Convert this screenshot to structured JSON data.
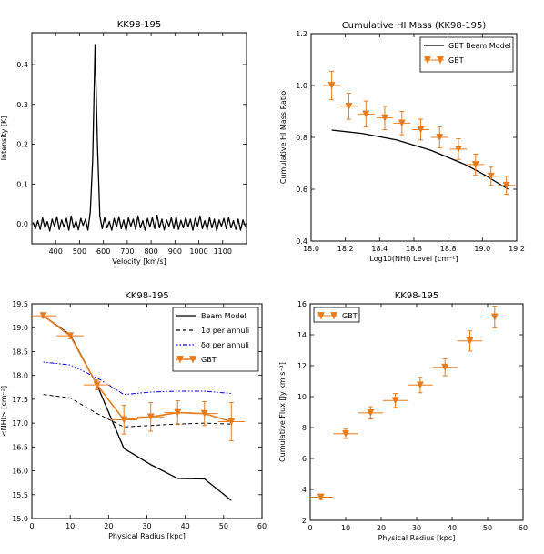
{
  "chart_data": [
    {
      "type": "line",
      "title": "KK98-195",
      "xlabel": "Velocity [km/s]",
      "ylabel": "Intensity [K]",
      "xlim": [
        300,
        1200
      ],
      "ylim": [
        -0.05,
        0.48
      ],
      "xticks": [
        400,
        500,
        600,
        700,
        800,
        900,
        1000,
        1100
      ],
      "yticks": [
        0.0,
        0.1,
        0.2,
        0.3,
        0.4
      ],
      "ytick_labels": [
        "0.0",
        "0.1",
        "0.2",
        "0.3",
        "0.4"
      ],
      "series": [
        {
          "color": "#000000",
          "x": [
            305,
            315,
            325,
            335,
            345,
            355,
            365,
            375,
            385,
            395,
            405,
            415,
            425,
            435,
            445,
            455,
            465,
            475,
            485,
            495,
            505,
            515,
            525,
            535,
            545,
            555,
            565,
            575,
            585,
            595,
            605,
            615,
            625,
            635,
            645,
            655,
            665,
            675,
            685,
            695,
            705,
            715,
            725,
            735,
            745,
            755,
            765,
            775,
            785,
            795,
            805,
            815,
            825,
            835,
            845,
            855,
            865,
            875,
            885,
            895,
            905,
            915,
            925,
            935,
            945,
            955,
            965,
            975,
            985,
            995,
            1005,
            1015,
            1025,
            1035,
            1045,
            1055,
            1065,
            1075,
            1085,
            1095,
            1105,
            1115,
            1125,
            1135,
            1145,
            1155,
            1165,
            1175,
            1185,
            1195
          ],
          "values": [
            0.004,
            -0.012,
            0.008,
            -0.014,
            0.015,
            -0.01,
            0.006,
            -0.018,
            0.012,
            -0.006,
            0.018,
            -0.014,
            0.01,
            -0.008,
            0.014,
            -0.016,
            0.02,
            -0.01,
            0.007,
            -0.015,
            0.014,
            -0.004,
            0.012,
            -0.016,
            0.03,
            0.16,
            0.45,
            0.2,
            0.02,
            -0.012,
            0.016,
            -0.01,
            0.006,
            -0.016,
            0.014,
            -0.008,
            0.018,
            -0.012,
            0.01,
            -0.018,
            0.015,
            -0.006,
            0.012,
            -0.014,
            0.02,
            -0.01,
            0.008,
            -0.016,
            0.014,
            -0.008,
            0.016,
            -0.012,
            0.022,
            -0.01,
            0.012,
            -0.015,
            0.01,
            -0.006,
            0.015,
            -0.012,
            0.018,
            -0.014,
            0.009,
            -0.01,
            0.016,
            -0.008,
            0.012,
            -0.016,
            0.014,
            -0.006,
            0.02,
            -0.012,
            0.008,
            -0.014,
            0.016,
            -0.01,
            0.012,
            -0.018,
            0.01,
            -0.006,
            0.014,
            -0.012,
            0.016,
            -0.01,
            0.008,
            -0.014,
            0.012,
            -0.016,
            0.01,
            -0.006
          ]
        }
      ]
    },
    {
      "type": "line",
      "title": "Cumulative HI Mass (KK98-195)",
      "xlabel": "Log10(NHI) Level [cm⁻²]",
      "ylabel": "Cumulative HI Mass Ratio",
      "xlim": [
        18.0,
        19.2
      ],
      "ylim": [
        0.4,
        1.2
      ],
      "xticks": [
        18.0,
        18.2,
        18.4,
        18.6,
        18.8,
        19.0,
        19.2
      ],
      "xtick_labels": [
        "18.0",
        "18.2",
        "18.4",
        "18.6",
        "18.8",
        "19.0",
        "19.2"
      ],
      "yticks": [
        0.4,
        0.6,
        0.8,
        1.0,
        1.2
      ],
      "ytick_labels": [
        "0.4",
        "0.6",
        "0.8",
        "1.0",
        "1.2"
      ],
      "legend_position": "top-right",
      "series": [
        {
          "name": "GBT Beam Model",
          "color": "#000000",
          "style": "line",
          "x": [
            18.12,
            18.3,
            18.5,
            18.7,
            18.9,
            19.0,
            19.15
          ],
          "values": [
            0.828,
            0.815,
            0.79,
            0.75,
            0.695,
            0.66,
            0.6
          ]
        },
        {
          "name": "GBT",
          "color": "#e87b1b",
          "style": "errorbar",
          "x": [
            18.12,
            18.22,
            18.32,
            18.43,
            18.53,
            18.64,
            18.75,
            18.86,
            18.96,
            19.05,
            19.14
          ],
          "values": [
            1.0,
            0.92,
            0.89,
            0.875,
            0.855,
            0.83,
            0.8,
            0.755,
            0.695,
            0.65,
            0.615
          ],
          "xerr": [
            0.05,
            0.05,
            0.05,
            0.05,
            0.05,
            0.05,
            0.05,
            0.05,
            0.05,
            0.05,
            0.05
          ],
          "yerr": [
            0.055,
            0.05,
            0.05,
            0.045,
            0.045,
            0.04,
            0.04,
            0.04,
            0.04,
            0.035,
            0.035
          ]
        }
      ]
    },
    {
      "type": "line",
      "title": "KK98-195",
      "xlabel": "Physical Radius [kpc]",
      "ylabel": "<NHI> [cm⁻²]",
      "xlim": [
        0,
        60
      ],
      "ylim": [
        15.0,
        19.5
      ],
      "xticks": [
        0,
        10,
        20,
        30,
        40,
        50,
        60
      ],
      "yticks": [
        15.0,
        15.5,
        16.0,
        16.5,
        17.0,
        17.5,
        18.0,
        18.5,
        19.0,
        19.5
      ],
      "ytick_labels": [
        "15.0",
        "15.5",
        "16.0",
        "16.5",
        "17.0",
        "17.5",
        "18.0",
        "18.5",
        "19.0",
        "19.5"
      ],
      "legend_position": "top-right",
      "series": [
        {
          "name": "Beam Model",
          "color": "#000000",
          "style": "line",
          "x": [
            3,
            10,
            17,
            24,
            31,
            38,
            45,
            52
          ],
          "values": [
            19.25,
            18.85,
            17.8,
            16.47,
            16.13,
            15.84,
            15.83,
            15.38
          ]
        },
        {
          "name": "1σ per annuli",
          "color": "#000000",
          "style": "dashed",
          "x": [
            3,
            10,
            17,
            24,
            31,
            38,
            45,
            52
          ],
          "values": [
            17.6,
            17.53,
            17.2,
            16.92,
            16.95,
            16.98,
            17.0,
            16.98
          ]
        },
        {
          "name": "δσ per annuli",
          "color": "#0000ff",
          "style": "dashdot",
          "x": [
            3,
            10,
            17,
            24,
            31,
            38,
            45,
            52
          ],
          "values": [
            18.28,
            18.22,
            17.95,
            17.6,
            17.65,
            17.67,
            17.67,
            17.62
          ]
        },
        {
          "name": "GBT",
          "color": "#e87b1b",
          "style": "errorbar-line",
          "x": [
            3,
            10,
            17,
            24,
            31,
            38,
            45,
            52
          ],
          "values": [
            19.25,
            18.83,
            17.8,
            17.07,
            17.13,
            17.22,
            17.2,
            17.03
          ],
          "xerr": [
            3.5,
            3.5,
            3.5,
            3.5,
            3.5,
            3.5,
            3.5,
            3.5
          ],
          "yerr": [
            0.04,
            0.06,
            0.1,
            0.3,
            0.3,
            0.25,
            0.25,
            0.4
          ]
        }
      ]
    },
    {
      "type": "scatter",
      "title": "KK98-195",
      "xlabel": "Physical Radius [kpc]",
      "ylabel": "Cumulative Flux [Jy km s⁻¹]",
      "xlim": [
        0,
        60
      ],
      "ylim": [
        2,
        16
      ],
      "xticks": [
        0,
        10,
        20,
        30,
        40,
        50,
        60
      ],
      "yticks": [
        2,
        4,
        6,
        8,
        10,
        12,
        14,
        16
      ],
      "legend_position": "top-left",
      "series": [
        {
          "name": "GBT",
          "color": "#e87b1b",
          "style": "errorbar",
          "x": [
            3,
            10,
            17,
            24,
            31,
            38,
            45,
            52
          ],
          "values": [
            3.5,
            7.6,
            8.95,
            9.75,
            10.75,
            11.9,
            13.6,
            15.15
          ],
          "xerr": [
            3.5,
            3.5,
            3.5,
            3.5,
            3.5,
            3.5,
            3.5,
            3.5
          ],
          "yerr": [
            0.15,
            0.3,
            0.4,
            0.45,
            0.5,
            0.55,
            0.65,
            0.7
          ]
        }
      ]
    }
  ]
}
